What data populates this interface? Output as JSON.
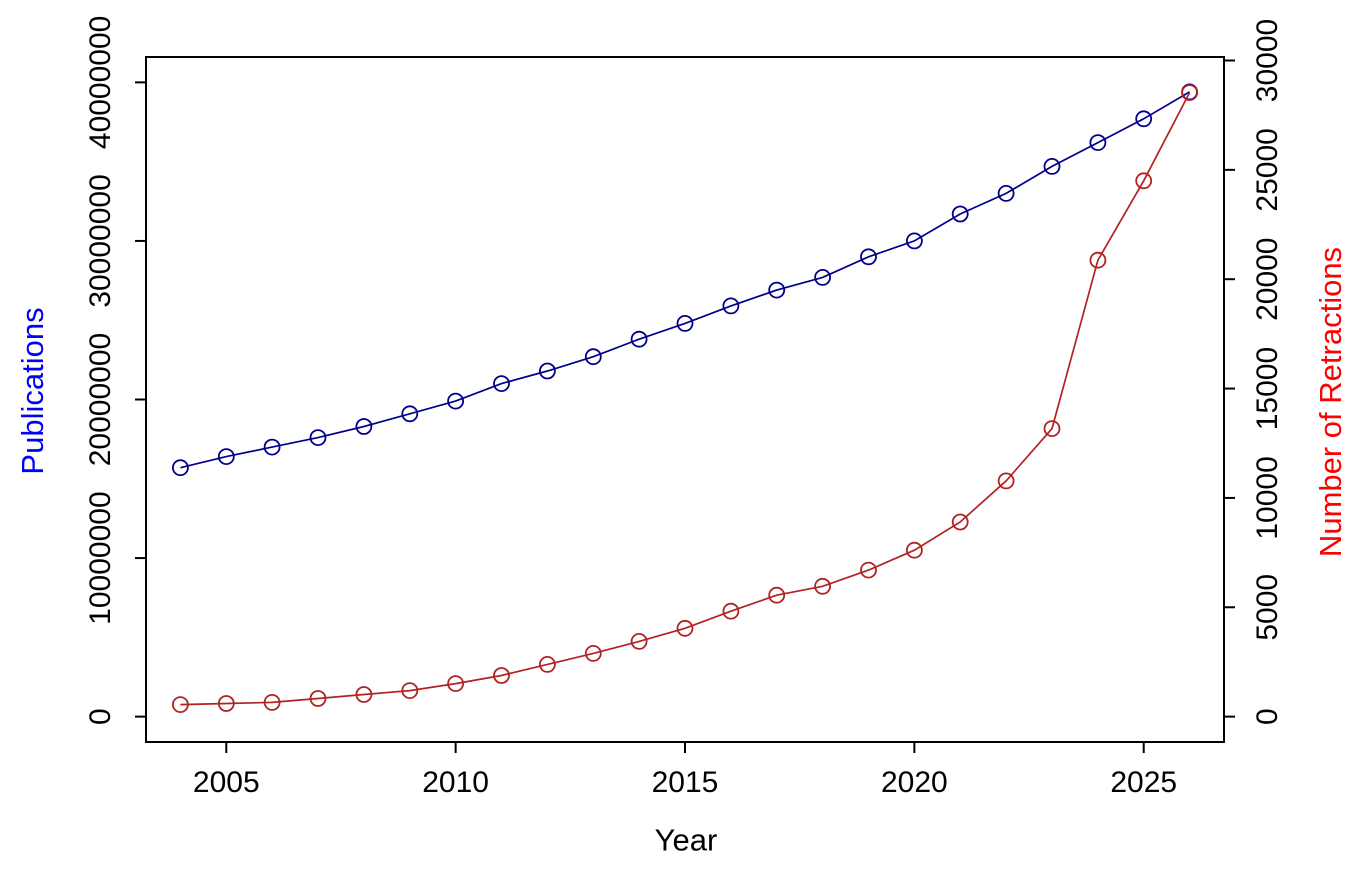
{
  "figure": {
    "background_color": "#ffffff",
    "axis_color": "#000000"
  },
  "chart_data": {
    "type": "line",
    "title": "",
    "xlabel": "Year",
    "ylabel_left": "Publications",
    "ylabel_right": "Number of Retractions",
    "ylabel_left_color": "#0000ff",
    "ylabel_right_color": "#ff0000",
    "grid": false,
    "legend": "none",
    "x": [
      2004,
      2005,
      2006,
      2007,
      2008,
      2009,
      2010,
      2011,
      2012,
      2013,
      2014,
      2015,
      2016,
      2017,
      2018,
      2019,
      2020,
      2021,
      2022,
      2023,
      2024,
      2025,
      2026
    ],
    "series": [
      {
        "name": "Publications",
        "axis": "left",
        "color": "#00008b",
        "marker": "open-circle",
        "values": [
          15700000,
          16400000,
          17000000,
          17600000,
          18300000,
          19100000,
          19900000,
          21000000,
          21800000,
          22700000,
          23800000,
          24800000,
          25900000,
          26900000,
          27700000,
          29000000,
          30000000,
          31700000,
          33000000,
          34700000,
          36200000,
          37700000,
          39400000
        ]
      },
      {
        "name": "Number of Retractions",
        "axis": "right",
        "color": "#b22222",
        "marker": "open-circle",
        "values": [
          550,
          600,
          650,
          830,
          1010,
          1190,
          1510,
          1880,
          2390,
          2890,
          3440,
          4040,
          4820,
          5550,
          5960,
          6700,
          7610,
          8900,
          10780,
          13170,
          20870,
          24500,
          28530
        ]
      }
    ],
    "x_ticks": [
      2005,
      2010,
      2015,
      2020,
      2025
    ],
    "y_ticks_left": [
      0,
      10000000,
      20000000,
      30000000,
      40000000
    ],
    "y_ticks_right": [
      0,
      5000,
      10000,
      15000,
      20000,
      25000,
      30000
    ],
    "xlim": [
      2003.25,
      2026.75
    ],
    "ylim_left": [
      -1600000,
      41600000
    ],
    "ylim_right": [
      -1160,
      30160
    ]
  }
}
